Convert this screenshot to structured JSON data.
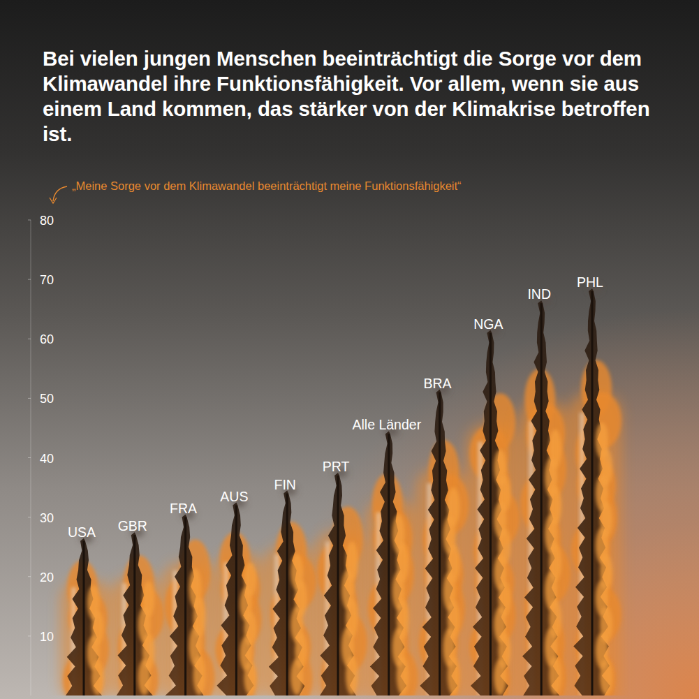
{
  "chart_data": {
    "type": "bar",
    "title": "Bei vielen jungen Menschen beeinträchtigt die Sorge vor dem Klimawandel ihre Funktionsfähigkeit. Vor allem, wenn sie aus einem Land kommen, das stärker von der Klimakrise betroffen ist.",
    "y_label": "„Meine Sorge vor dem Klimawandel beeinträchtigt meine Funktionsfähigkeit“",
    "categories": [
      "USA",
      "GBR",
      "FRA",
      "AUS",
      "FIN",
      "PRT",
      "Alle Länder",
      "BRA",
      "NGA",
      "IND",
      "PHL"
    ],
    "values": [
      26,
      27,
      30,
      32,
      34,
      37,
      44,
      51,
      61,
      66,
      68
    ],
    "color": "#e8892f",
    "ylim": [
      0,
      80
    ],
    "yticks": [
      10,
      20,
      30,
      40,
      50,
      60,
      70,
      80
    ],
    "grid": false,
    "data_labels": false
  }
}
